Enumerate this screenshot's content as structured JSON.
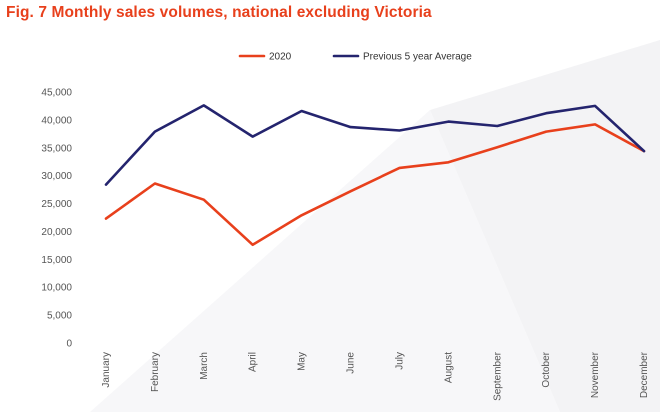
{
  "figure": {
    "title": "Fig. 7 Monthly sales volumes, national excluding Victoria"
  },
  "chart_data": {
    "type": "line",
    "title": "Fig. 7 Monthly sales volumes, national excluding Victoria",
    "xlabel": "",
    "ylabel": "",
    "categories": [
      "January",
      "February",
      "March",
      "April",
      "May",
      "June",
      "July",
      "August",
      "September",
      "October",
      "November",
      "December"
    ],
    "ylim": [
      0,
      45000
    ],
    "yticks": [
      0,
      5000,
      10000,
      15000,
      20000,
      25000,
      30000,
      35000,
      40000,
      45000
    ],
    "ytick_labels": [
      "0",
      "5,000",
      "10,000",
      "15,000",
      "20,000",
      "25,000",
      "30,000",
      "35,000",
      "40,000",
      "45,000"
    ],
    "grid": false,
    "legend_position": "top-center",
    "series": [
      {
        "name": "2020",
        "color": "#e8401c",
        "values": [
          22300,
          28600,
          25700,
          17600,
          22900,
          27200,
          31400,
          32400,
          35100,
          37900,
          39200,
          34400
        ]
      },
      {
        "name": "Previous 5 year Average",
        "color": "#24246e",
        "values": [
          28400,
          37900,
          42600,
          37000,
          41600,
          38700,
          38100,
          39700,
          38900,
          41200,
          42500,
          34400
        ]
      }
    ]
  }
}
